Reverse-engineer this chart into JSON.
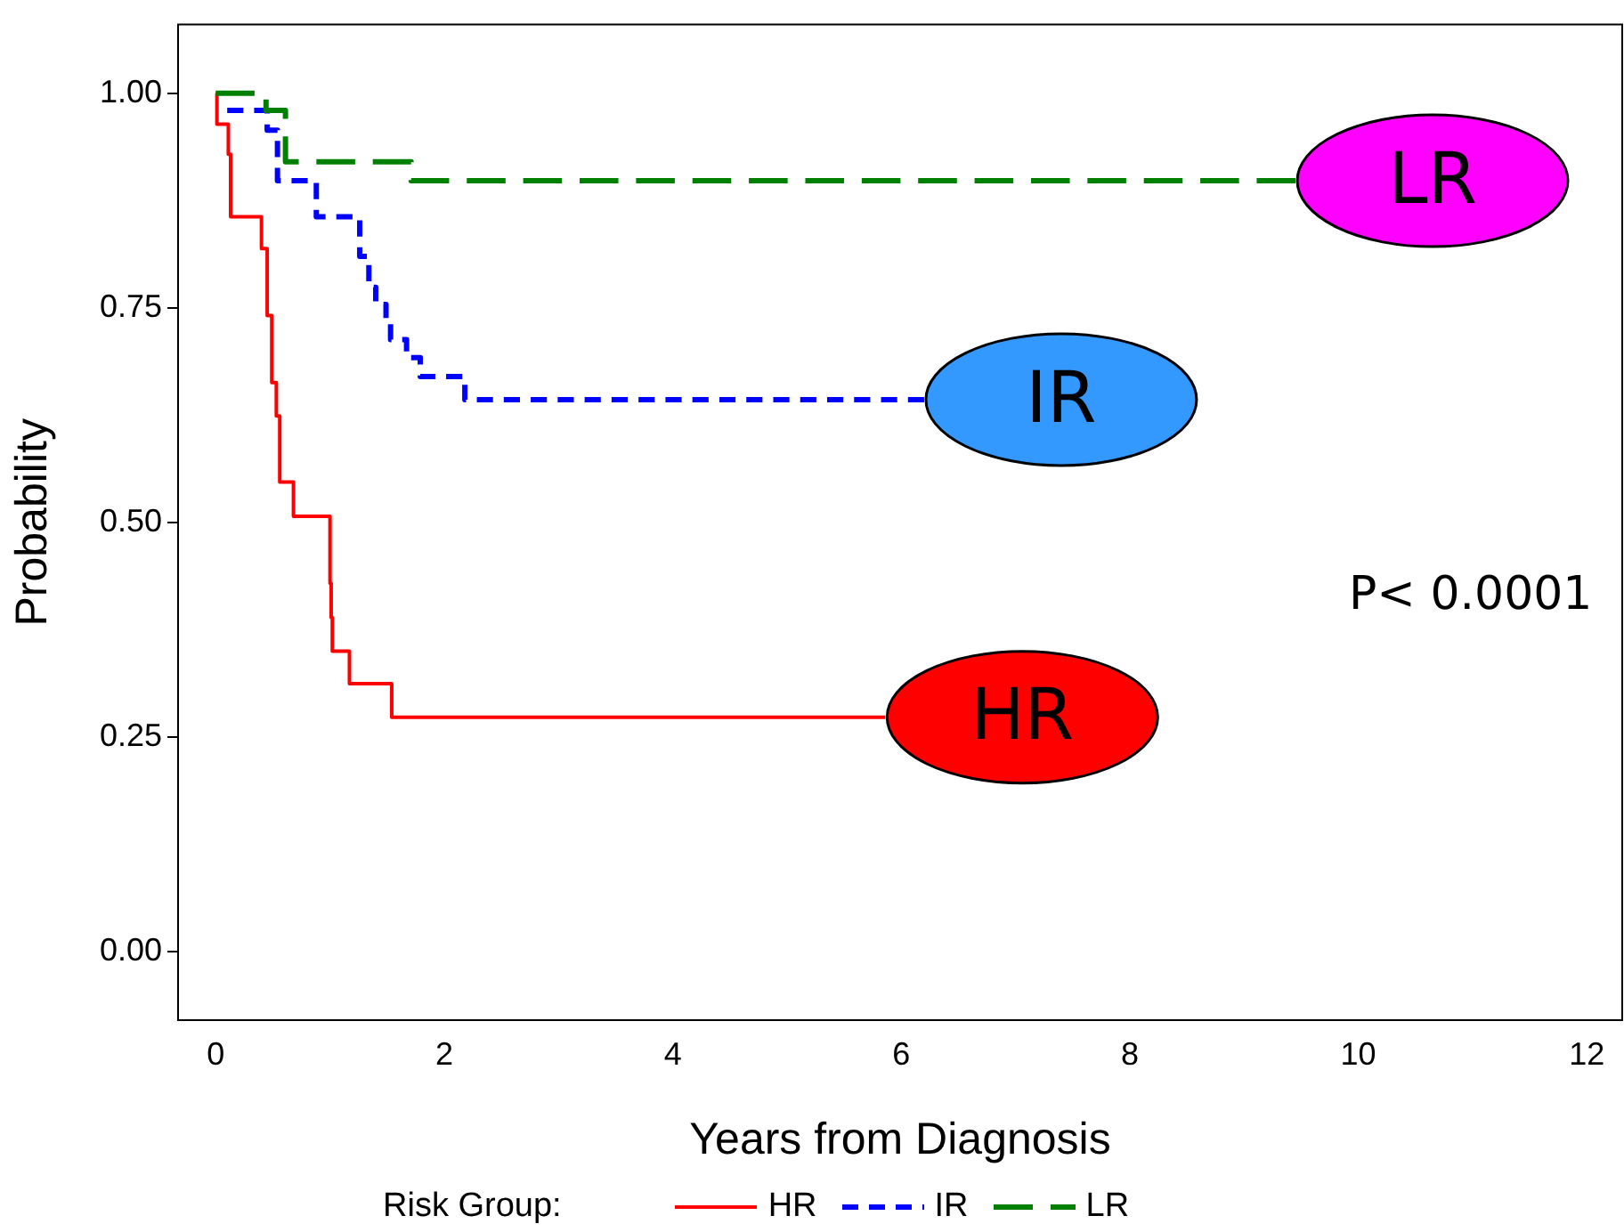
{
  "chart_data": {
    "type": "step",
    "xlabel": "Years from Diagnosis",
    "ylabel": "Probability",
    "legend_title": "Risk Group:",
    "legend": "bottom",
    "grid": false,
    "marker": "none",
    "xlim": [
      -0.33,
      12.31
    ],
    "xticks": [
      0,
      2,
      4,
      6,
      8,
      10,
      12
    ],
    "ylim": [
      -0.08,
      1.08
    ],
    "yticks": [
      {
        "value": 0,
        "label": "0.00"
      },
      {
        "value": 0.25,
        "label": "0.25"
      },
      {
        "value": 0.5,
        "label": "0.50"
      },
      {
        "value": 0.75,
        "label": "0.75"
      },
      {
        "value": 1,
        "label": "1.00"
      }
    ],
    "series": [
      {
        "name": "HR",
        "color": "#ff0000",
        "line_style": "solid",
        "x": [
          0,
          0.01,
          0.11,
          0.13,
          0.4,
          0.45,
          0.49,
          0.53,
          0.56,
          0.68,
          1.0,
          1.01,
          1.02,
          1.17,
          1.54,
          5.86
        ],
        "values": [
          1,
          0.964,
          0.929,
          0.856,
          0.819,
          0.741,
          0.663,
          0.624,
          0.547,
          0.507,
          0.429,
          0.389,
          0.35,
          0.312,
          0.273,
          0.273
        ]
      },
      {
        "name": "IR",
        "color": "#0000ff",
        "line_style": "dashed",
        "x": [
          0.1,
          0.45,
          0.54,
          0.88,
          1.26,
          1.34,
          1.4,
          1.49,
          1.53,
          1.67,
          1.79,
          2.18,
          6.2
        ],
        "values": [
          0.98,
          0.957,
          0.898,
          0.856,
          0.81,
          0.774,
          0.754,
          0.732,
          0.713,
          0.692,
          0.67,
          0.643,
          0.643
        ]
      },
      {
        "name": "LR",
        "color": "#008000",
        "line_style": "dashed",
        "x": [
          0,
          0.44,
          0.61,
          1.71,
          9.45
        ],
        "values": [
          1,
          0.98,
          0.92,
          0.898,
          0.898
        ]
      }
    ],
    "annotations": [
      "P< 0.0001"
    ]
  }
}
